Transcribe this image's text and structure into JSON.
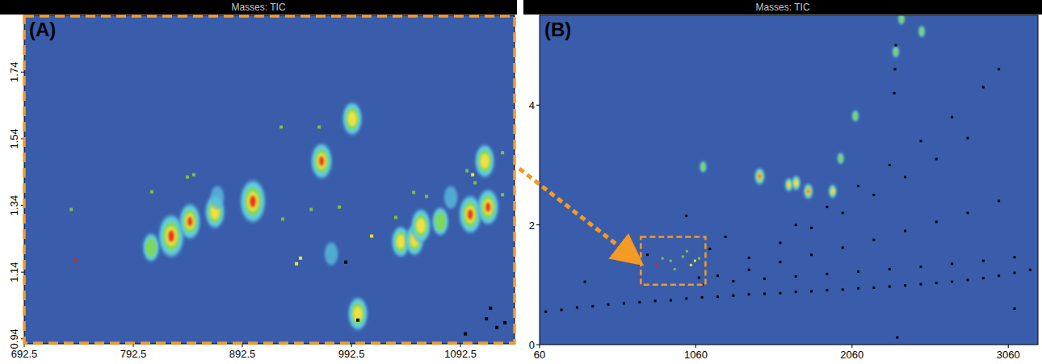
{
  "chart_data": [
    {
      "type": "scatter",
      "title": "Masses: TIC",
      "panel_label": "(A)",
      "xlim": [
        692.5,
        1142
      ],
      "ylim": [
        0.925,
        1.91
      ],
      "xticks": [
        692.5,
        792.5,
        892.5,
        992.5,
        1092.5
      ],
      "yticks": [
        0.94,
        1.14,
        1.34,
        1.54,
        1.74
      ],
      "tick_labels": true,
      "series": [
        {
          "type": "contour",
          "x": [
            808.8,
            827.3,
            844.4,
            867.3,
            902.1,
            965.1,
            993.2,
            998.4,
            974,
            1037.7,
            1050.3,
            1056.2,
            1074,
            1101.4,
            1114.7,
            1117.7,
            1083.6,
            869.5
          ],
          "values": [
            1.214,
            1.248,
            1.292,
            1.321,
            1.352,
            1.473,
            1.6,
            1.015,
            1.195,
            1.231,
            1.236,
            1.279,
            1.292,
            1.313,
            1.473,
            1.335,
            1.364,
            1.364
          ],
          "intensity": [
            0.4,
            1.0,
            0.7,
            0.6,
            1.0,
            0.7,
            0.6,
            0.6,
            0.2,
            0.5,
            0.5,
            0.6,
            0.4,
            0.8,
            0.6,
            0.7,
            0.2,
            0.2
          ]
        },
        {
          "type": "scatter",
          "marker": "square",
          "x": [
            735.5,
            809.5,
            842.1,
            848,
            928,
            962.9,
            929.5,
            955.5,
            981.4,
            1033.2,
            1049.5,
            1061.3,
            1098.4,
            1131,
            1131,
            1105.8,
            1011,
            942.1,
            945.8,
            1103.6,
            740,
            987.3,
            1120,
            1116.2,
            1125.8,
            1133.2,
            1097,
            998.4
          ],
          "values": [
            1.328,
            1.381,
            1.425,
            1.432,
            1.575,
            1.575,
            1.299,
            1.328,
            1.335,
            1.304,
            1.379,
            1.367,
            1.444,
            1.372,
            1.498,
            1.408,
            1.248,
            1.165,
            1.182,
            1.432,
            1.175,
            1.17,
            1.032,
            1.0,
            0.974,
            0.988,
            0.955,
            0.996
          ],
          "colors": [
            "#7ac143",
            "#7ac143",
            "#7ac143",
            "#7ac143",
            "#7ac143",
            "#7ac143",
            "#7ac143",
            "#7ac143",
            "#7ac143",
            "#7ac143",
            "#7ac143",
            "#7ac143",
            "#7ac143",
            "#7ac143",
            "#7ac143",
            "#7ac143",
            "#f2e600",
            "#f2e600",
            "#f2e600",
            "#f2e600",
            "#e0211b",
            "#000000",
            "#000000",
            "#000000",
            "#000000",
            "#000000",
            "#000000",
            "#000000"
          ]
        }
      ]
    },
    {
      "type": "scatter",
      "title": "Masses: TIC",
      "panel_label": "(B)",
      "xlim": [
        60,
        3250
      ],
      "ylim": [
        0,
        5.5
      ],
      "xticks": [
        60,
        1060,
        2060,
        3060
      ],
      "yticks": [
        0,
        2,
        4
      ],
      "tick_labels": true,
      "highlight": {
        "xlim": [
          708,
          1122
        ],
        "ylim": [
          1.0,
          1.8
        ]
      },
      "series": [
        {
          "type": "contour",
          "x": [
            1107,
            1469,
            1656,
            1702,
            1780,
            1936,
            2081,
            2340,
            2376,
            2506,
            1987
          ],
          "values": [
            2.97,
            2.81,
            2.67,
            2.7,
            2.56,
            2.56,
            3.82,
            4.89,
            5.44,
            5.23,
            3.11
          ],
          "intensity": [
            0.3,
            0.8,
            0.5,
            0.6,
            0.7,
            0.5,
            0.3,
            0.3,
            0.3,
            0.3,
            0.3
          ]
        },
        {
          "type": "scatter",
          "marker": "square",
          "x": [
            811,
            899,
            977,
            1029,
            1055,
            925,
            1003,
            847,
            1081
          ],
          "values": [
            1.33,
            1.4,
            1.47,
            1.33,
            1.4,
            1.26,
            1.56,
            1.44,
            1.44
          ],
          "colors": [
            "#e0211b",
            "#7ac143",
            "#7ac143",
            "#f2e600",
            "#f2e600",
            "#7ac143",
            "#7ac143",
            "#7ac143",
            "#7ac143"
          ]
        },
        {
          "type": "scatter",
          "marker": "square",
          "color": "#000000",
          "x": [
            100,
            200,
            300,
            400,
            500,
            600,
            700,
            800,
            900,
            1000,
            1100,
            1200,
            1300,
            1400,
            1500,
            1600,
            1700,
            1800,
            1900,
            2000,
            2100,
            2200,
            2300,
            2400,
            2500,
            2600,
            2700,
            2800,
            2900,
            3000,
            3100,
            1100,
            1300,
            1500,
            1700,
            1900,
            2100,
            2300,
            2500,
            2700,
            2900,
            3100,
            1200,
            1400,
            1600,
            1800,
            2000,
            2200,
            2400,
            2600,
            2800,
            3000,
            1400,
            1600,
            1800,
            2000,
            2200,
            2400,
            2600,
            2800,
            1700,
            1900,
            2100,
            2300,
            2500,
            2700,
            2900,
            3000,
            700,
            750,
            1150,
            1250,
            1000,
            3200,
            3100,
            2350,
            350,
            1080,
            2330,
            2335,
            2340
          ],
          "values": [
            0.55,
            0.58,
            0.62,
            0.64,
            0.67,
            0.69,
            0.71,
            0.73,
            0.74,
            0.77,
            0.79,
            0.8,
            0.82,
            0.84,
            0.85,
            0.86,
            0.88,
            0.89,
            0.91,
            0.92,
            0.94,
            0.95,
            0.97,
            0.99,
            1.01,
            1.03,
            1.05,
            1.08,
            1.11,
            1.15,
            1.2,
            1.0,
            1.06,
            1.1,
            1.14,
            1.18,
            1.22,
            1.26,
            1.3,
            1.35,
            1.4,
            1.46,
            1.15,
            1.25,
            1.38,
            1.5,
            1.62,
            1.75,
            1.9,
            2.05,
            2.2,
            2.4,
            1.45,
            1.7,
            1.95,
            2.2,
            2.5,
            2.8,
            3.1,
            3.45,
            2.0,
            2.3,
            2.65,
            3.0,
            3.4,
            3.8,
            4.3,
            4.6,
            1.35,
            1.5,
            1.6,
            1.8,
            2.15,
            1.25,
            0.6,
            0.12,
            1.05,
            1.12,
            4.2,
            4.6,
            5.0
          ]
        }
      ]
    }
  ]
}
